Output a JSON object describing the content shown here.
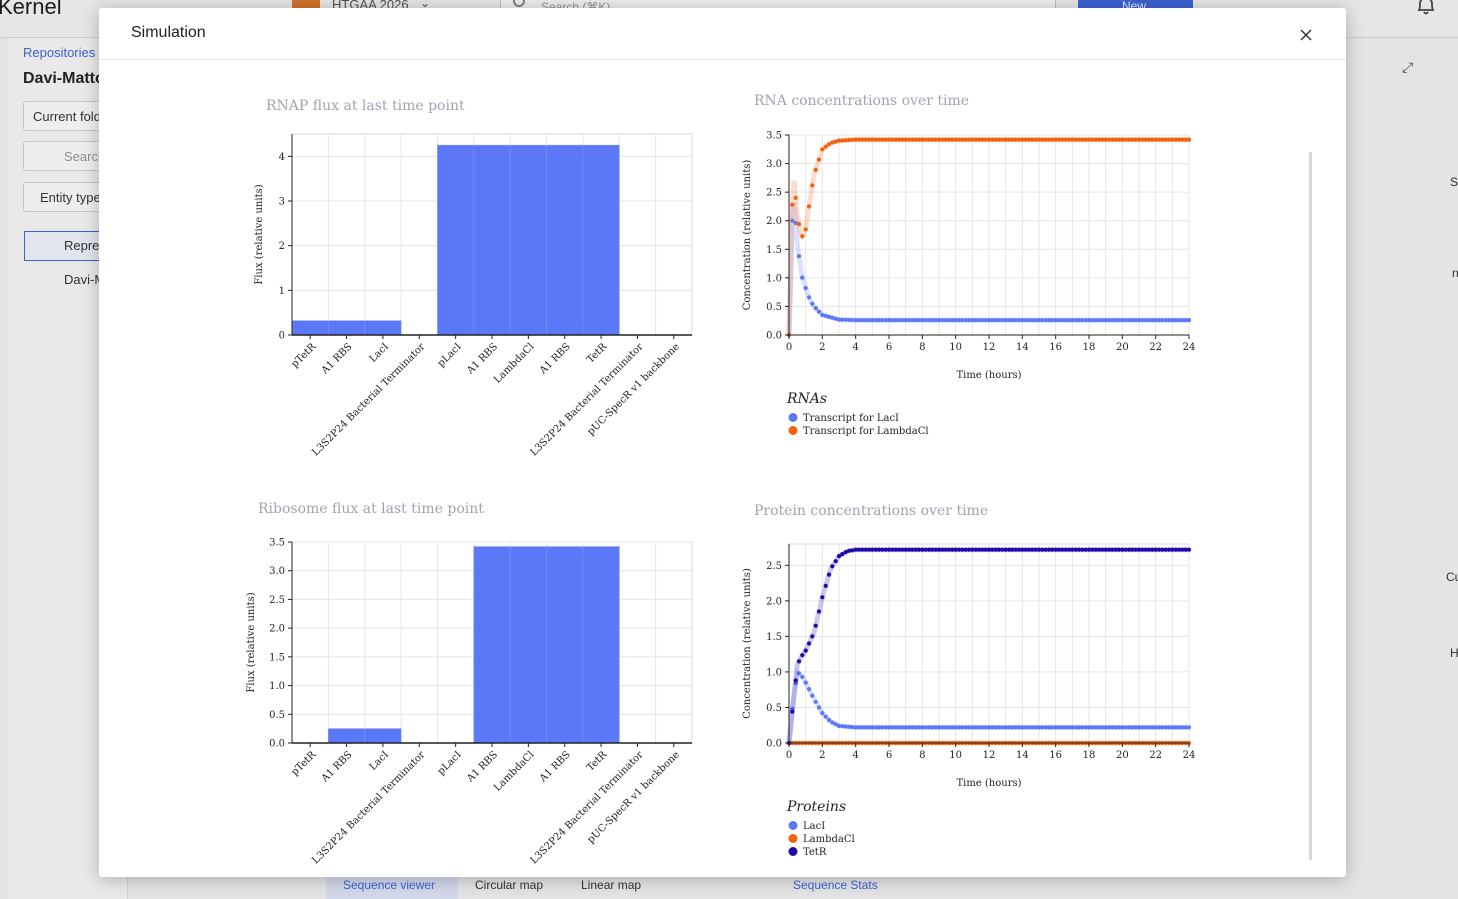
{
  "app": {
    "title": "Kernel",
    "project_name": "HTGAA 2026",
    "search_placeholder": "Search (⌘K)",
    "new_button_label": "New",
    "breadcrumb": "Repositories",
    "repo_title": "Davi-Matto",
    "current_folder_label": "Current fold",
    "sidebar_search_placeholder": "Search",
    "entity_type_label": "Entity type",
    "list_items": [
      "Repre",
      "Davi-M"
    ],
    "bottom_tabs": [
      "Sequence viewer",
      "Circular map",
      "Linear map"
    ],
    "sequence_stats_label": "Sequence Stats",
    "right_letters": [
      "S",
      "n",
      "Cu",
      "H"
    ],
    "right_panel_labels": [
      "or",
      "v1 backbone"
    ]
  },
  "modal": {
    "title": "Simulation",
    "close_icon": "close-icon"
  },
  "chart_data": [
    {
      "type": "bar",
      "title": "RNAP flux at last time point",
      "ylabel": "Flux (relative units)",
      "xlabel": "",
      "ylim": [
        0,
        4.5
      ],
      "yticks": [
        "0",
        "1",
        "2",
        "3",
        "4"
      ],
      "categories": [
        "pTetR",
        "A1 RBS",
        "LacI",
        "L3S2P24 Bacterial Terminator",
        "pLacI",
        "A1 RBS",
        "LambdaCl",
        "A1 RBS",
        "TetR",
        "L3S2P24 Bacterial Terminator",
        "pUC-SpecR v1 backbone"
      ],
      "values": [
        0.32,
        0.32,
        0.32,
        0,
        4.25,
        4.25,
        4.25,
        4.25,
        4.25,
        0,
        0
      ],
      "color": "#5b79f6"
    },
    {
      "type": "line",
      "title": "RNA concentrations over time",
      "ylabel": "Concentration (relative units)",
      "xlabel": "Time (hours)",
      "xlim": [
        0,
        24
      ],
      "ylim": [
        0,
        3.5
      ],
      "xticks": [
        "0",
        "2",
        "4",
        "6",
        "8",
        "10",
        "12",
        "14",
        "16",
        "18",
        "20",
        "22",
        "24"
      ],
      "yticks": [
        "0.0",
        "0.5",
        "1.0",
        "1.5",
        "2.0",
        "2.5",
        "3.0",
        "3.5"
      ],
      "legend_title": "RNAs",
      "series": [
        {
          "name": "Transcript for LacI",
          "color": "#5b79f6",
          "x": [
            0,
            0.25,
            0.5,
            0.75,
            1.0,
            1.25,
            1.5,
            2.0,
            3.0,
            4.0,
            24
          ],
          "y": [
            0,
            2.5,
            1.6,
            1.05,
            0.82,
            0.62,
            0.5,
            0.35,
            0.27,
            0.26,
            0.26
          ]
        },
        {
          "name": "Transcript for LambdaCl",
          "color": "#f2620f",
          "x": [
            0,
            0.25,
            0.5,
            0.75,
            1.0,
            1.25,
            1.5,
            2.0,
            2.5,
            3.0,
            4.0,
            24
          ],
          "y": [
            0,
            2.85,
            2.1,
            1.7,
            1.85,
            2.35,
            2.8,
            3.25,
            3.36,
            3.4,
            3.42,
            3.42
          ]
        }
      ]
    },
    {
      "type": "bar",
      "title": "Ribosome flux at last time point",
      "ylabel": "Flux (relative units)",
      "xlabel": "",
      "ylim": [
        0,
        3.5
      ],
      "yticks": [
        "0.0",
        "0.5",
        "1.0",
        "1.5",
        "2.0",
        "2.5",
        "3.0",
        "3.5"
      ],
      "categories": [
        "pTetR",
        "A1 RBS",
        "LacI",
        "L3S2P24 Bacterial Terminator",
        "pLacI",
        "A1 RBS",
        "LambdaCl",
        "A1 RBS",
        "TetR",
        "L3S2P24 Bacterial Terminator",
        "pUC-SpecR v1 backbone"
      ],
      "values": [
        0,
        0.25,
        0.25,
        0,
        0,
        3.42,
        3.42,
        3.42,
        3.42,
        0,
        0
      ],
      "color": "#5b79f6"
    },
    {
      "type": "line",
      "title": "Protein concentrations over time",
      "ylabel": "Concentration (relative units)",
      "xlabel": "Time (hours)",
      "xlim": [
        0,
        24
      ],
      "ylim": [
        0,
        2.8
      ],
      "xticks": [
        "0",
        "2",
        "4",
        "6",
        "8",
        "10",
        "12",
        "14",
        "16",
        "18",
        "20",
        "22",
        "24"
      ],
      "yticks": [
        "0.0",
        "0.5",
        "1.0",
        "1.5",
        "2.0",
        "2.5"
      ],
      "legend_title": "Proteins",
      "series": [
        {
          "name": "LacI",
          "color": "#5b79f6",
          "x": [
            0,
            0.25,
            0.5,
            0.75,
            1.0,
            1.5,
            2.0,
            2.5,
            3.0,
            4.0,
            24
          ],
          "y": [
            0,
            0.6,
            1.0,
            0.95,
            0.85,
            0.62,
            0.42,
            0.3,
            0.24,
            0.22,
            0.22
          ]
        },
        {
          "name": "LambdaCl",
          "color": "#f2620f",
          "x": [
            0,
            24
          ],
          "y": [
            0,
            0
          ]
        },
        {
          "name": "TetR",
          "color": "#1d0aa6",
          "x": [
            0,
            0.25,
            0.5,
            0.75,
            1.0,
            1.5,
            2.0,
            2.5,
            3.0,
            3.5,
            4.0,
            24
          ],
          "y": [
            0,
            0.55,
            1.1,
            1.22,
            1.3,
            1.55,
            2.05,
            2.45,
            2.63,
            2.7,
            2.72,
            2.72
          ]
        }
      ]
    }
  ]
}
